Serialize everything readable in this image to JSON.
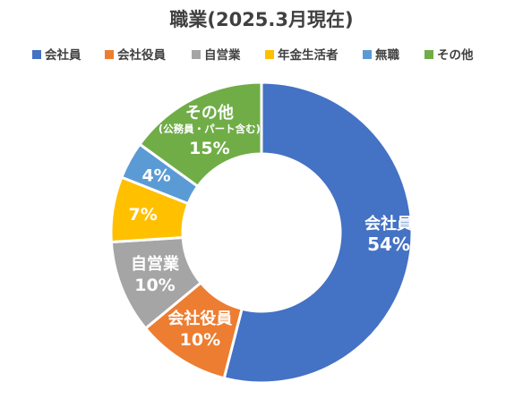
{
  "chart_data": {
    "type": "pie",
    "style": "doughnut",
    "title": "職業(2025.3月現在)",
    "legend_position": "top",
    "categories": [
      "会社員",
      "会社役員",
      "自営業",
      "年金生活者",
      "無職",
      "その他"
    ],
    "values": [
      54,
      10,
      10,
      7,
      4,
      15
    ],
    "value_labels": [
      "54%",
      "10%",
      "10%",
      "7%",
      "4%",
      "15%"
    ],
    "colors": [
      "#4472C4",
      "#ED7D31",
      "#A5A5A5",
      "#FFC000",
      "#5B9BD5",
      "#70AD47"
    ],
    "annotations": {
      "その他": "(公務員・パート含む)"
    }
  }
}
